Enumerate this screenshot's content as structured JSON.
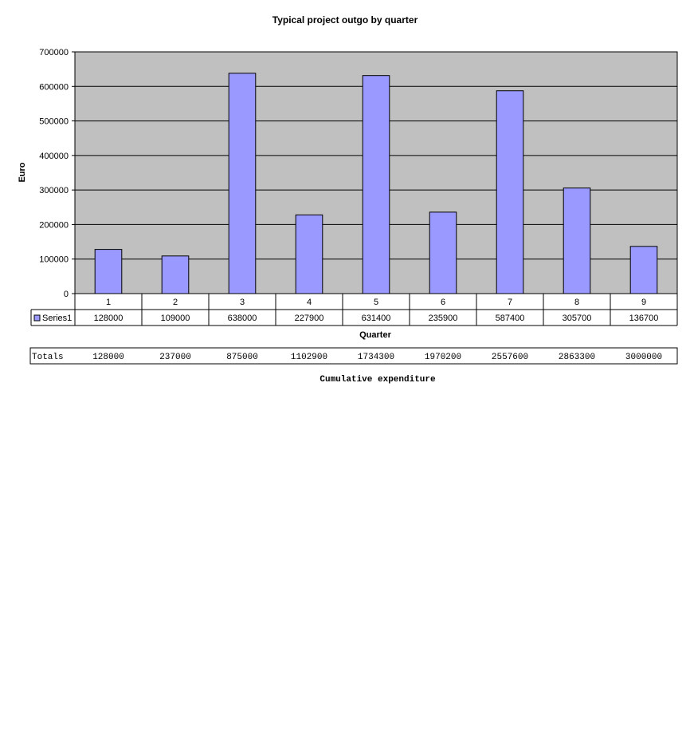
{
  "chart_data": {
    "type": "bar",
    "title": "Typical project outgo by quarter",
    "xlabel": "Quarter",
    "ylabel": "Euro",
    "categories": [
      "1",
      "2",
      "3",
      "4",
      "5",
      "6",
      "7",
      "8",
      "9"
    ],
    "series": [
      {
        "name": "Series1",
        "values": [
          128000,
          109000,
          638000,
          227900,
          631400,
          235900,
          587400,
          305700,
          136700
        ]
      }
    ],
    "ylim": [
      0,
      700000
    ],
    "yticks": [
      "0",
      "100000",
      "200000",
      "300000",
      "400000",
      "500000",
      "600000",
      "700000"
    ],
    "grid": true,
    "legend_placement": "data-table-left",
    "colors": {
      "plot_background": "#c0c0c0",
      "bar_fill": "#9999ff",
      "bar_stroke": "#000000"
    }
  },
  "totals_table": {
    "label": "Totals",
    "values": [
      "128000",
      "237000",
      "875000",
      "1102900",
      "1734300",
      "1970200",
      "2557600",
      "2863300",
      "3000000"
    ],
    "caption": "Cumulative expenditure"
  }
}
